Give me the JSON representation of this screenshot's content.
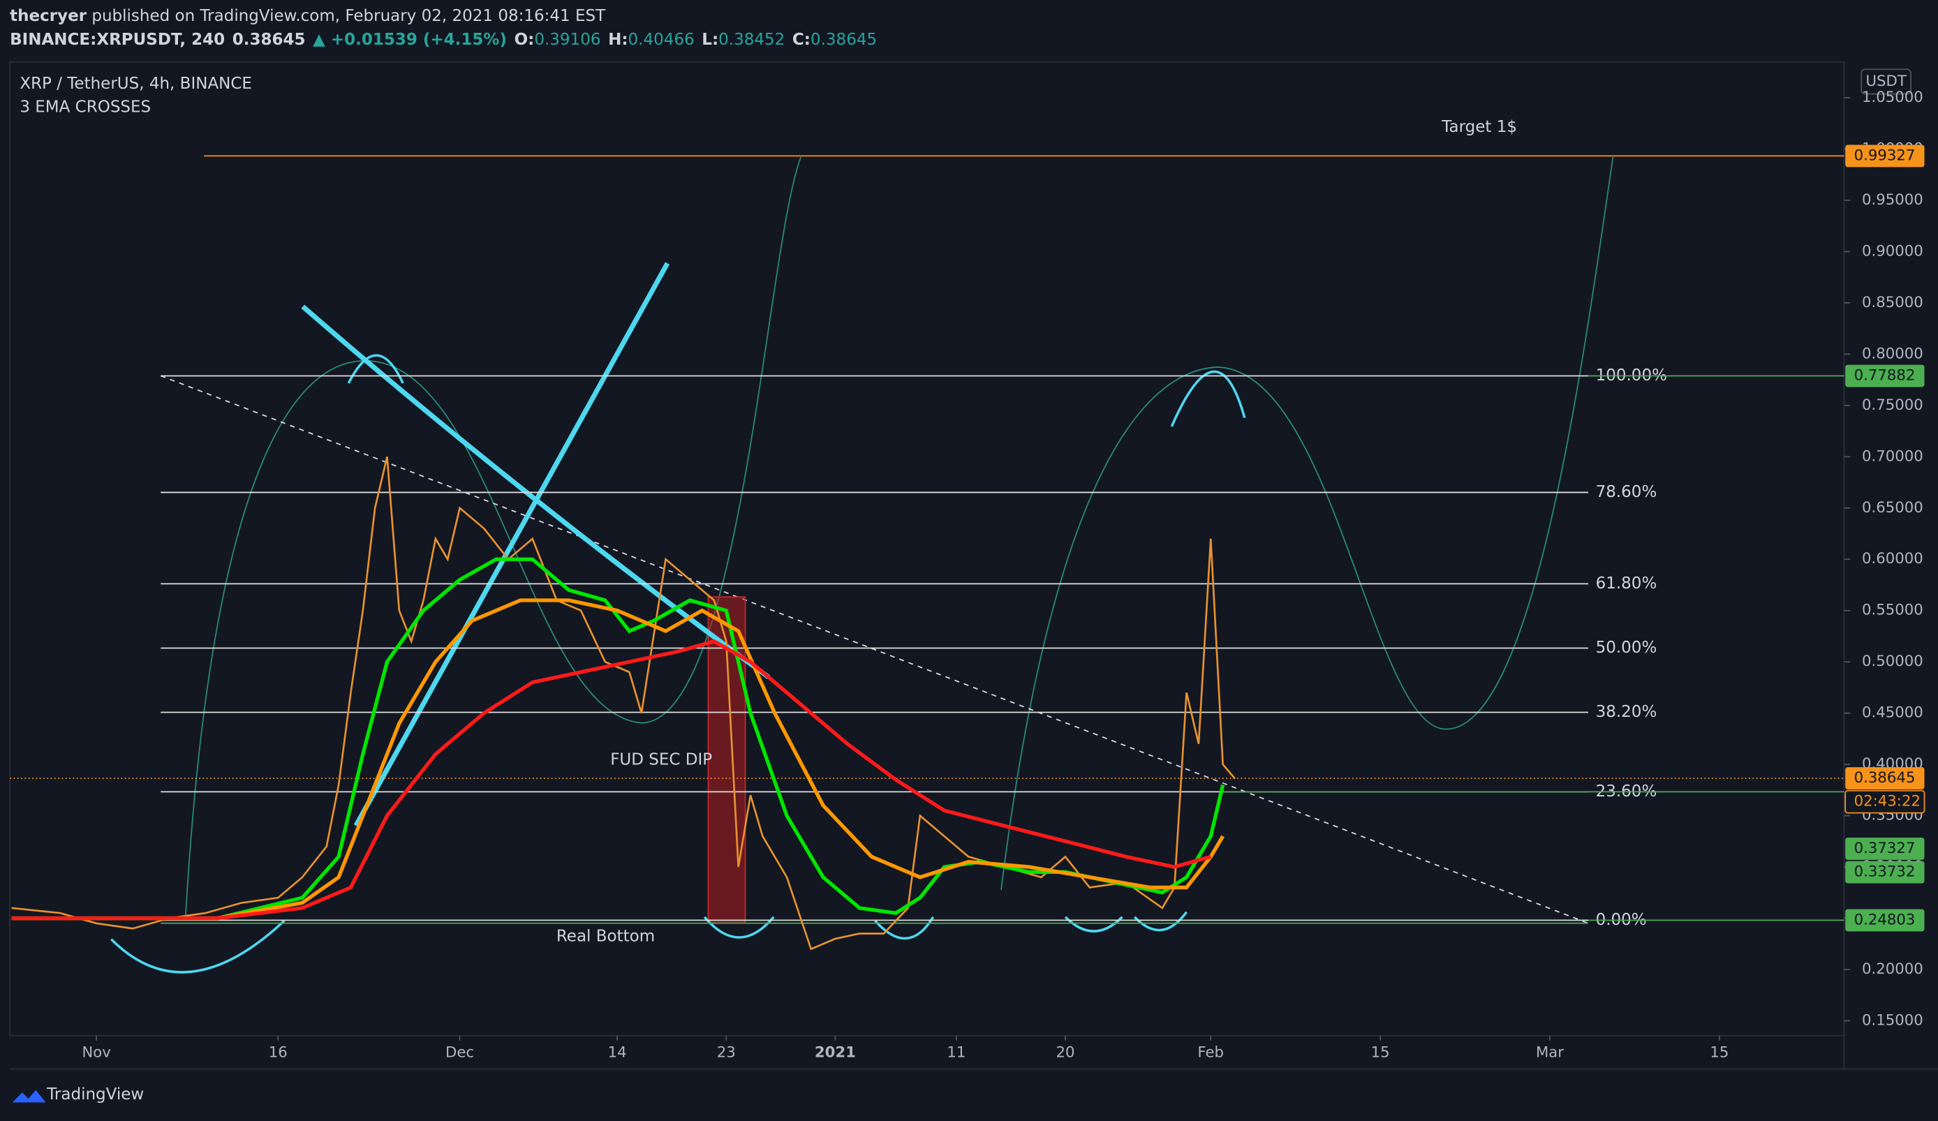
{
  "header": {
    "user": "thecryer",
    "published": " published on TradingView.com, February 02, 2021 08:16:41 EST",
    "symbol": "BINANCE:XRPUSDT, 240",
    "last": "0.38645",
    "change": "▲ +0.01539 (+4.15%)",
    "ohlc": [
      [
        "O:",
        "0.39106"
      ],
      [
        "H:",
        "0.40466"
      ],
      [
        "L:",
        "0.38452"
      ],
      [
        "C:",
        "0.38645"
      ]
    ]
  },
  "footer": {
    "brand": "TradingView"
  },
  "chart_data": {
    "type": "line",
    "title": "XRP / TetherUS, 4h, BINANCE",
    "subtitle": "3 EMA CROSSES",
    "y_unit": "USDT",
    "countdown": "02:43:22",
    "xlim": [
      -7.14,
      144.29
    ],
    "xticks": [
      {
        "value": 0,
        "label": "Nov"
      },
      {
        "value": 15,
        "label": "16"
      },
      {
        "value": 30,
        "label": "Dec"
      },
      {
        "value": 43,
        "label": "14"
      },
      {
        "value": 52,
        "label": "23"
      },
      {
        "value": 61,
        "label": "2021"
      },
      {
        "value": 71,
        "label": "11"
      },
      {
        "value": 80,
        "label": "20"
      },
      {
        "value": 92,
        "label": "Feb"
      },
      {
        "value": 106,
        "label": "15"
      },
      {
        "value": 120,
        "label": "Mar"
      },
      {
        "value": 134,
        "label": "15"
      }
    ],
    "ylim": [
      0.1355,
      1.085
    ],
    "yticks": [
      {
        "value": 0.15,
        "label": "0.15000"
      },
      {
        "value": 0.2,
        "label": "0.20000"
      },
      {
        "value": 0.25,
        "label": "0.25000"
      },
      {
        "value": 0.3,
        "label": "0.30000"
      },
      {
        "value": 0.35,
        "label": "0.35000"
      },
      {
        "value": 0.4,
        "label": "0.40000"
      },
      {
        "value": 0.45,
        "label": "0.45000"
      },
      {
        "value": 0.5,
        "label": "0.50000"
      },
      {
        "value": 0.55,
        "label": "0.55000"
      },
      {
        "value": 0.6,
        "label": "0.60000"
      },
      {
        "value": 0.65,
        "label": "0.65000"
      },
      {
        "value": 0.7,
        "label": "0.70000"
      },
      {
        "value": 0.75,
        "label": "0.75000"
      },
      {
        "value": 0.8,
        "label": "0.80000"
      },
      {
        "value": 0.85,
        "label": "0.85000"
      },
      {
        "value": 0.9,
        "label": "0.90000"
      },
      {
        "value": 0.95,
        "label": "0.95000"
      },
      {
        "value": 1.0,
        "label": "1.00000"
      },
      {
        "value": 1.05,
        "label": "1.05000"
      }
    ],
    "grid": false,
    "series": [
      {
        "color": "#e8922e",
        "x": [
          -7,
          -3,
          0,
          3,
          6,
          9,
          12,
          15,
          17,
          19,
          20,
          21,
          22,
          23,
          24,
          25,
          26,
          27,
          28,
          29,
          30,
          32,
          34,
          36,
          38,
          40,
          42,
          44,
          45,
          47,
          49,
          51,
          52,
          53,
          54,
          55,
          57,
          59,
          61,
          63,
          65,
          67,
          68,
          70,
          72,
          75,
          78,
          80,
          82,
          85,
          88,
          89,
          90,
          91,
          92,
          93,
          94
        ],
        "values": [
          0.26,
          0.255,
          0.245,
          0.24,
          0.25,
          0.255,
          0.265,
          0.27,
          0.29,
          0.32,
          0.38,
          0.47,
          0.55,
          0.65,
          0.7,
          0.55,
          0.52,
          0.56,
          0.62,
          0.6,
          0.65,
          0.63,
          0.6,
          0.62,
          0.56,
          0.55,
          0.5,
          0.49,
          0.45,
          0.6,
          0.58,
          0.56,
          0.52,
          0.3,
          0.37,
          0.33,
          0.29,
          0.22,
          0.23,
          0.235,
          0.235,
          0.26,
          0.35,
          0.33,
          0.31,
          0.3,
          0.29,
          0.31,
          0.28,
          0.285,
          0.26,
          0.28,
          0.47,
          0.42,
          0.62,
          0.4,
          0.386
        ]
      },
      {
        "color": "#00e600",
        "x": [
          -7,
          10,
          17,
          20,
          22,
          24,
          27,
          30,
          33,
          36,
          39,
          42,
          44,
          46,
          49,
          52,
          54,
          57,
          60,
          63,
          66,
          68,
          70,
          73,
          77,
          80,
          84,
          88,
          90,
          92,
          93
        ],
        "values": [
          0.25,
          0.25,
          0.27,
          0.31,
          0.41,
          0.5,
          0.55,
          0.58,
          0.6,
          0.6,
          0.57,
          0.56,
          0.53,
          0.54,
          0.56,
          0.55,
          0.45,
          0.35,
          0.29,
          0.26,
          0.255,
          0.27,
          0.3,
          0.305,
          0.295,
          0.295,
          0.285,
          0.275,
          0.29,
          0.33,
          0.38
        ]
      },
      {
        "color": "#ff9800",
        "x": [
          -7,
          10,
          17,
          20,
          22,
          25,
          28,
          31,
          35,
          39,
          43,
          47,
          50,
          53,
          56,
          60,
          64,
          68,
          72,
          77,
          82,
          87,
          90,
          92,
          93
        ],
        "values": [
          0.25,
          0.25,
          0.265,
          0.29,
          0.35,
          0.44,
          0.5,
          0.54,
          0.56,
          0.56,
          0.55,
          0.53,
          0.55,
          0.53,
          0.45,
          0.36,
          0.31,
          0.29,
          0.305,
          0.3,
          0.29,
          0.28,
          0.28,
          0.31,
          0.33
        ]
      },
      {
        "color": "#ff1a1a",
        "x": [
          -7,
          10,
          17,
          21,
          24,
          28,
          32,
          36,
          40,
          44,
          48,
          51,
          54,
          58,
          62,
          66,
          70,
          75,
          80,
          85,
          89,
          92
        ],
        "values": [
          0.25,
          0.25,
          0.26,
          0.28,
          0.35,
          0.41,
          0.45,
          0.48,
          0.49,
          0.5,
          0.51,
          0.52,
          0.5,
          0.46,
          0.42,
          0.385,
          0.355,
          0.34,
          0.325,
          0.31,
          0.3,
          0.31
        ]
      }
    ],
    "fib_levels": [
      {
        "value": 0.77882,
        "label": "100.00%"
      },
      {
        "value": 0.6652,
        "label": "78.60%"
      },
      {
        "value": 0.5761,
        "label": "61.80%"
      },
      {
        "value": 0.5134,
        "label": "50.00%"
      },
      {
        "value": 0.4508,
        "label": "38.20%"
      },
      {
        "value": 0.3733,
        "label": "23.60%"
      },
      {
        "value": 0.24803,
        "label": "0.00%"
      }
    ],
    "price_labels": [
      {
        "value": 0.99327,
        "color": "#f7931a"
      },
      {
        "value": 0.77882,
        "color": "#4caf50"
      },
      {
        "value": 0.38645,
        "color": "#f7931a"
      },
      {
        "value": 0.37327,
        "color": "#4caf50"
      },
      {
        "value": 0.33732,
        "color": "#4caf50"
      },
      {
        "value": 0.24803,
        "color": "#4caf50"
      }
    ],
    "annotations": [
      {
        "text": "Target 1$",
        "color": "#f7931a"
      },
      {
        "text": "FUD SEC DIP",
        "color": "#e53935"
      },
      {
        "text": "Real Bottom",
        "color": "#4caf50"
      }
    ]
  }
}
